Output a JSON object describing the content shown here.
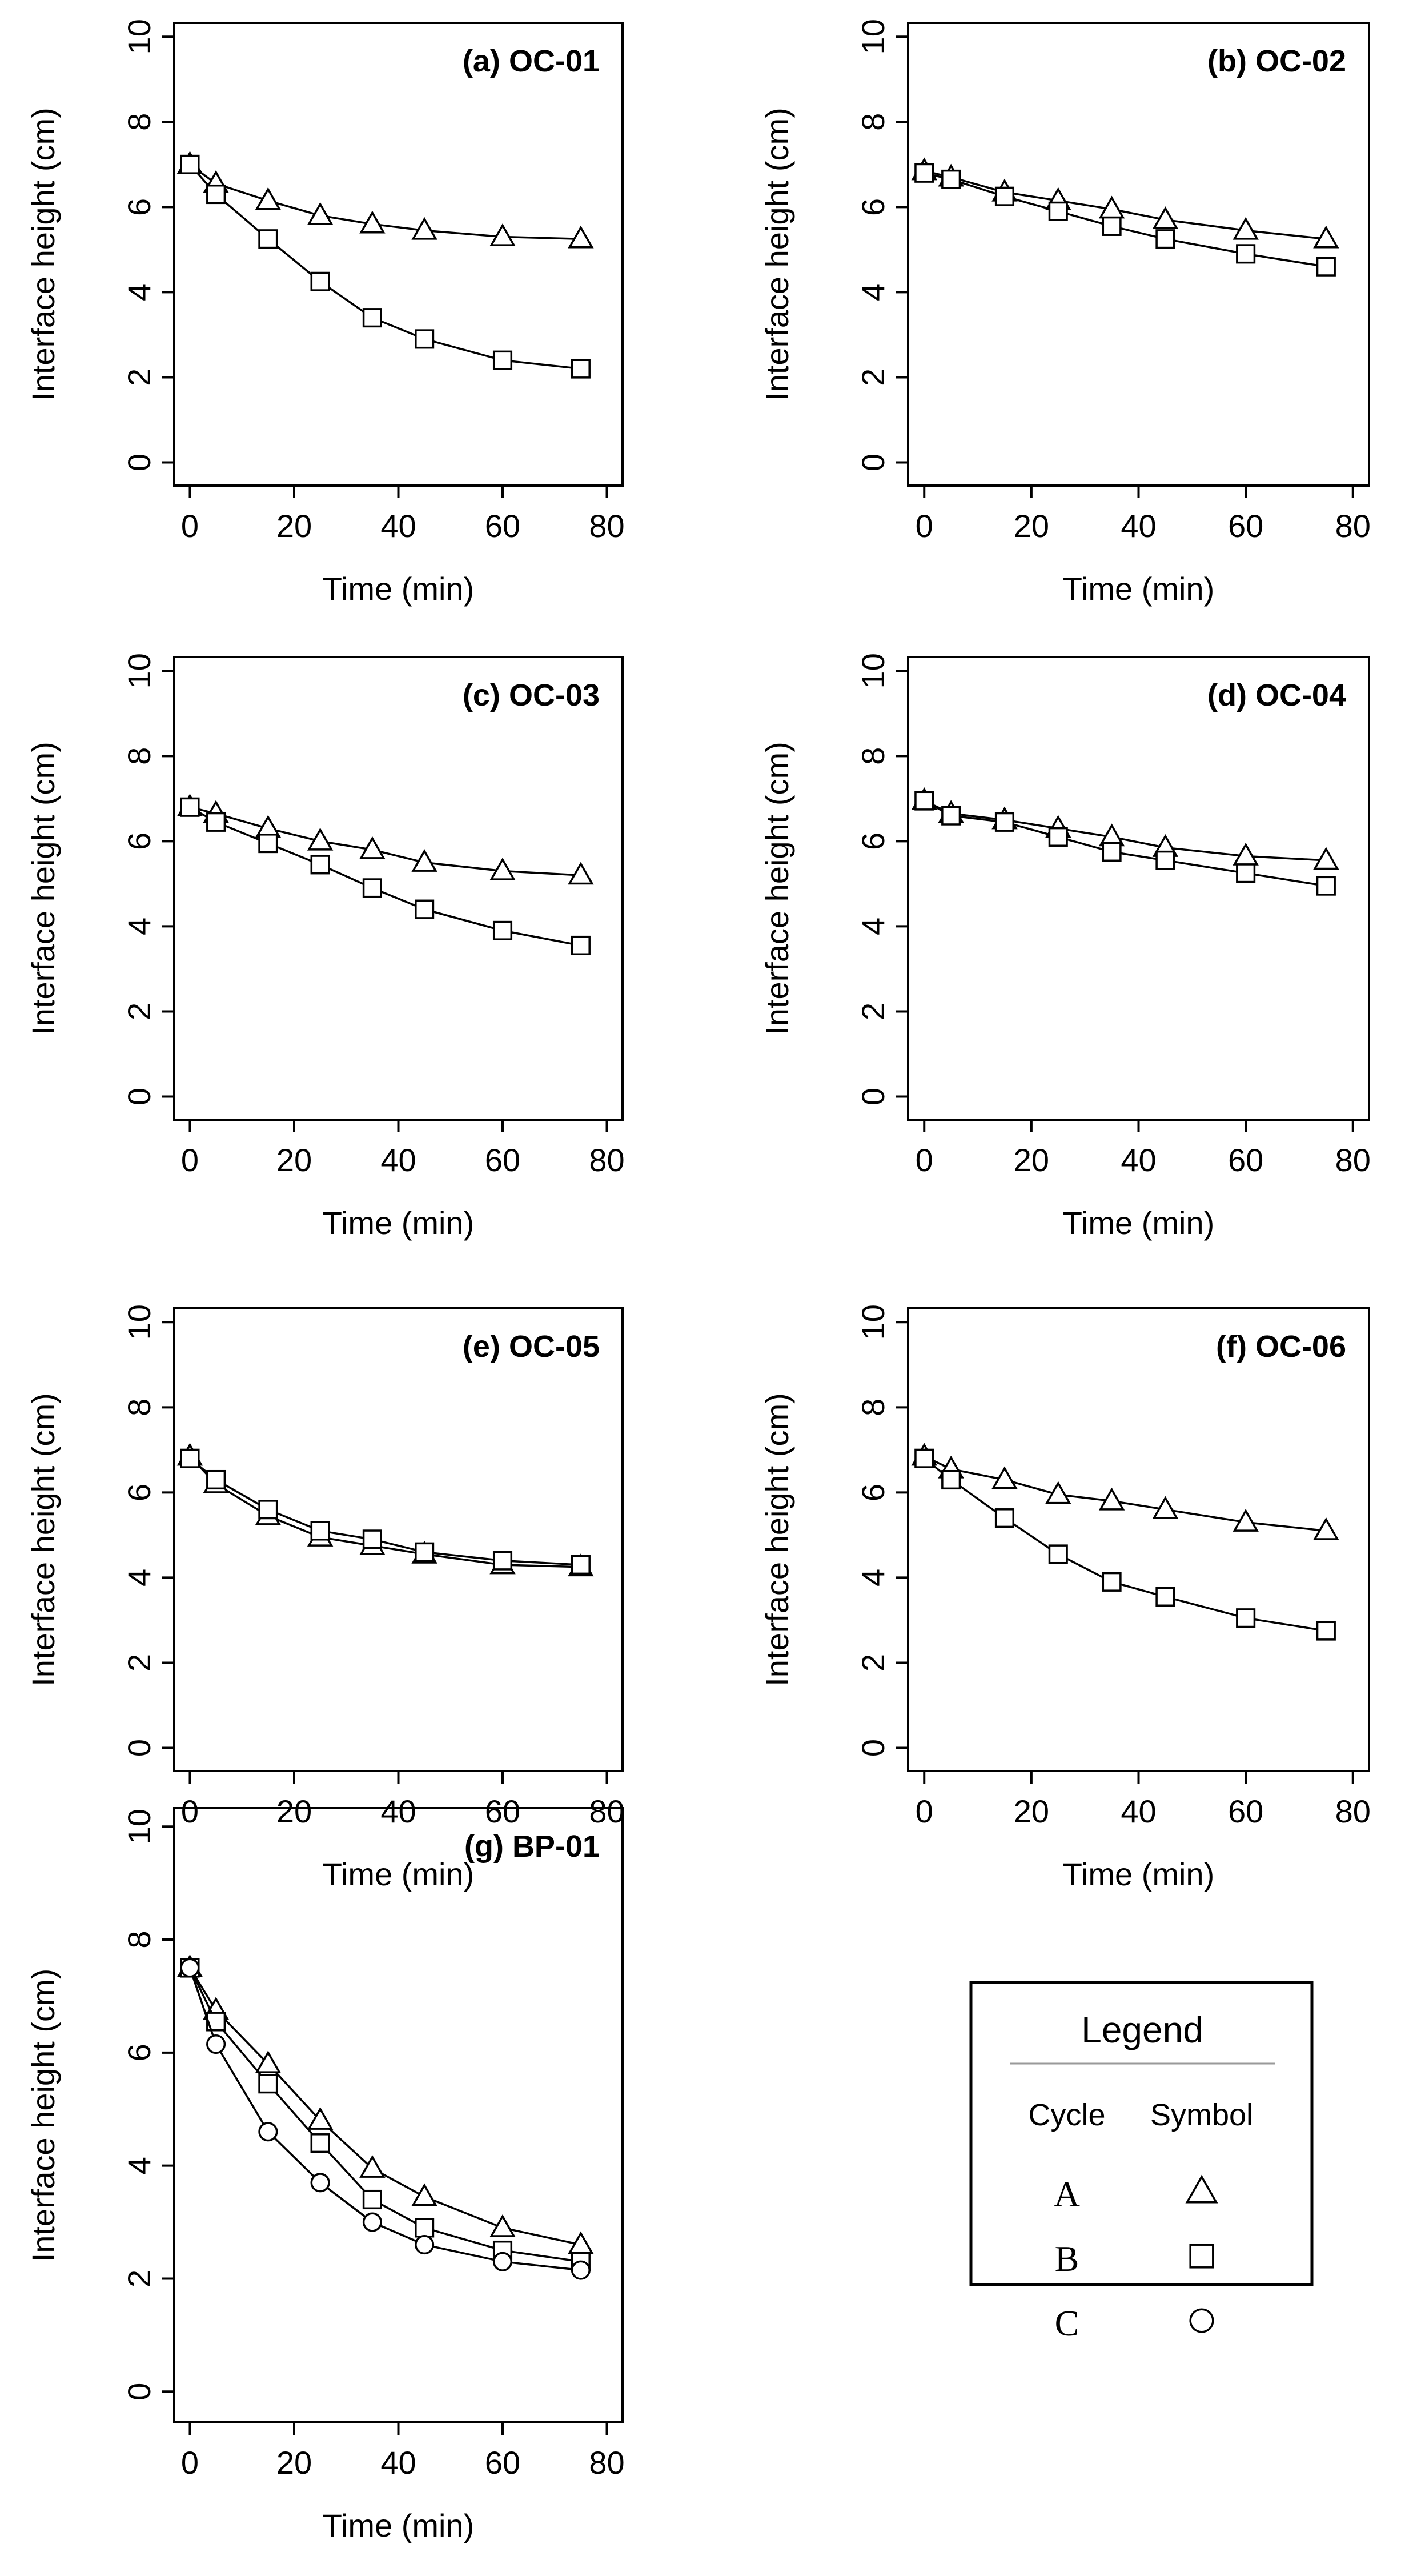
{
  "chart_data": [
    {
      "type": "line",
      "title": "(a) OC-01",
      "xlabel": "Time (min)",
      "ylabel": "Interface height (cm)",
      "xlim": [
        0,
        80
      ],
      "ylim": [
        0,
        10
      ],
      "xticks": [
        0,
        20,
        40,
        60,
        80
      ],
      "yticks": [
        0,
        2,
        4,
        6,
        8,
        10
      ],
      "x": [
        0,
        5,
        15,
        25,
        35,
        45,
        60,
        75
      ],
      "series": [
        {
          "name": "A",
          "marker": "triangle",
          "values": [
            7.0,
            6.55,
            6.15,
            5.8,
            5.6,
            5.45,
            5.3,
            5.25
          ]
        },
        {
          "name": "B",
          "marker": "square",
          "values": [
            7.0,
            6.3,
            5.25,
            4.25,
            3.4,
            2.9,
            2.4,
            2.2
          ]
        }
      ]
    },
    {
      "type": "line",
      "title": "(b) OC-02",
      "xlabel": "Time (min)",
      "ylabel": "Interface height (cm)",
      "xlim": [
        0,
        80
      ],
      "ylim": [
        0,
        10
      ],
      "xticks": [
        0,
        20,
        40,
        60,
        80
      ],
      "yticks": [
        0,
        2,
        4,
        6,
        8,
        10
      ],
      "x": [
        0,
        5,
        15,
        25,
        35,
        45,
        60,
        75
      ],
      "series": [
        {
          "name": "A",
          "marker": "triangle",
          "values": [
            6.85,
            6.7,
            6.35,
            6.15,
            5.95,
            5.7,
            5.45,
            5.25
          ]
        },
        {
          "name": "B",
          "marker": "square",
          "values": [
            6.8,
            6.65,
            6.25,
            5.9,
            5.55,
            5.25,
            4.9,
            4.6
          ]
        }
      ]
    },
    {
      "type": "line",
      "title": "(c) OC-03",
      "xlabel": "Time (min)",
      "ylabel": "Interface height (cm)",
      "xlim": [
        0,
        80
      ],
      "ylim": [
        0,
        10
      ],
      "xticks": [
        0,
        20,
        40,
        60,
        80
      ],
      "yticks": [
        0,
        2,
        4,
        6,
        8,
        10
      ],
      "x": [
        0,
        5,
        15,
        25,
        35,
        45,
        60,
        75
      ],
      "series": [
        {
          "name": "A",
          "marker": "triangle",
          "values": [
            6.8,
            6.65,
            6.3,
            6.0,
            5.8,
            5.5,
            5.3,
            5.2
          ]
        },
        {
          "name": "B",
          "marker": "square",
          "values": [
            6.8,
            6.45,
            5.95,
            5.45,
            4.9,
            4.4,
            3.9,
            3.55
          ]
        }
      ]
    },
    {
      "type": "line",
      "title": "(d) OC-04",
      "xlabel": "Time (min)",
      "ylabel": "Interface height (cm)",
      "xlim": [
        0,
        80
      ],
      "ylim": [
        0,
        10
      ],
      "xticks": [
        0,
        20,
        40,
        60,
        80
      ],
      "yticks": [
        0,
        2,
        4,
        6,
        8,
        10
      ],
      "x": [
        0,
        5,
        15,
        25,
        35,
        45,
        60,
        75
      ],
      "series": [
        {
          "name": "A",
          "marker": "triangle",
          "values": [
            6.95,
            6.65,
            6.5,
            6.3,
            6.1,
            5.85,
            5.65,
            5.55
          ]
        },
        {
          "name": "B",
          "marker": "square",
          "values": [
            6.95,
            6.6,
            6.45,
            6.1,
            5.75,
            5.55,
            5.25,
            4.95
          ]
        }
      ]
    },
    {
      "type": "line",
      "title": "(e) OC-05",
      "xlabel": "Time (min)",
      "ylabel": "Interface height (cm)",
      "xlim": [
        0,
        80
      ],
      "ylim": [
        0,
        10
      ],
      "xticks": [
        0,
        20,
        40,
        60,
        80
      ],
      "yticks": [
        0,
        2,
        4,
        6,
        8,
        10
      ],
      "x": [
        0,
        5,
        15,
        25,
        35,
        45,
        60,
        75
      ],
      "series": [
        {
          "name": "A",
          "marker": "triangle",
          "values": [
            6.85,
            6.2,
            5.45,
            4.95,
            4.75,
            4.55,
            4.3,
            4.25
          ]
        },
        {
          "name": "B",
          "marker": "square",
          "values": [
            6.8,
            6.3,
            5.6,
            5.1,
            4.9,
            4.6,
            4.4,
            4.3
          ]
        }
      ]
    },
    {
      "type": "line",
      "title": "(f) OC-06",
      "xlabel": "Time (min)",
      "ylabel": "Interface height (cm)",
      "xlim": [
        0,
        80
      ],
      "ylim": [
        0,
        10
      ],
      "xticks": [
        0,
        20,
        40,
        60,
        80
      ],
      "yticks": [
        0,
        2,
        4,
        6,
        8,
        10
      ],
      "x": [
        0,
        5,
        15,
        25,
        35,
        45,
        60,
        75
      ],
      "series": [
        {
          "name": "A",
          "marker": "triangle",
          "values": [
            6.85,
            6.55,
            6.3,
            5.95,
            5.8,
            5.6,
            5.3,
            5.1
          ]
        },
        {
          "name": "B",
          "marker": "square",
          "values": [
            6.8,
            6.3,
            5.4,
            4.55,
            3.9,
            3.55,
            3.05,
            2.75
          ]
        }
      ]
    },
    {
      "type": "line",
      "title": "(g) BP-01",
      "xlabel": "Time (min)",
      "ylabel": "Interface height (cm)",
      "xlim": [
        0,
        80
      ],
      "ylim": [
        0,
        10
      ],
      "xticks": [
        0,
        20,
        40,
        60,
        80
      ],
      "yticks": [
        0,
        2,
        4,
        6,
        8,
        10
      ],
      "x": [
        0,
        5,
        15,
        25,
        35,
        45,
        60,
        75
      ],
      "series": [
        {
          "name": "A",
          "marker": "triangle",
          "values": [
            7.5,
            6.75,
            5.8,
            4.8,
            3.95,
            3.45,
            2.9,
            2.6
          ]
        },
        {
          "name": "B",
          "marker": "square",
          "values": [
            7.5,
            6.55,
            5.45,
            4.4,
            3.4,
            2.9,
            2.5,
            2.3
          ]
        },
        {
          "name": "C",
          "marker": "circle",
          "values": [
            7.5,
            6.15,
            4.6,
            3.7,
            3.0,
            2.6,
            2.3,
            2.15
          ]
        }
      ]
    }
  ],
  "legend": {
    "title": "Legend",
    "col_cycle": "Cycle",
    "col_symbol": "Symbol",
    "entries": [
      {
        "cycle": "A",
        "symbol": "triangle"
      },
      {
        "cycle": "B",
        "symbol": "square"
      },
      {
        "cycle": "C",
        "symbol": "circle"
      }
    ]
  },
  "colors": {
    "line": "#000000",
    "background": "#ffffff",
    "legend_rule": "#999999"
  }
}
